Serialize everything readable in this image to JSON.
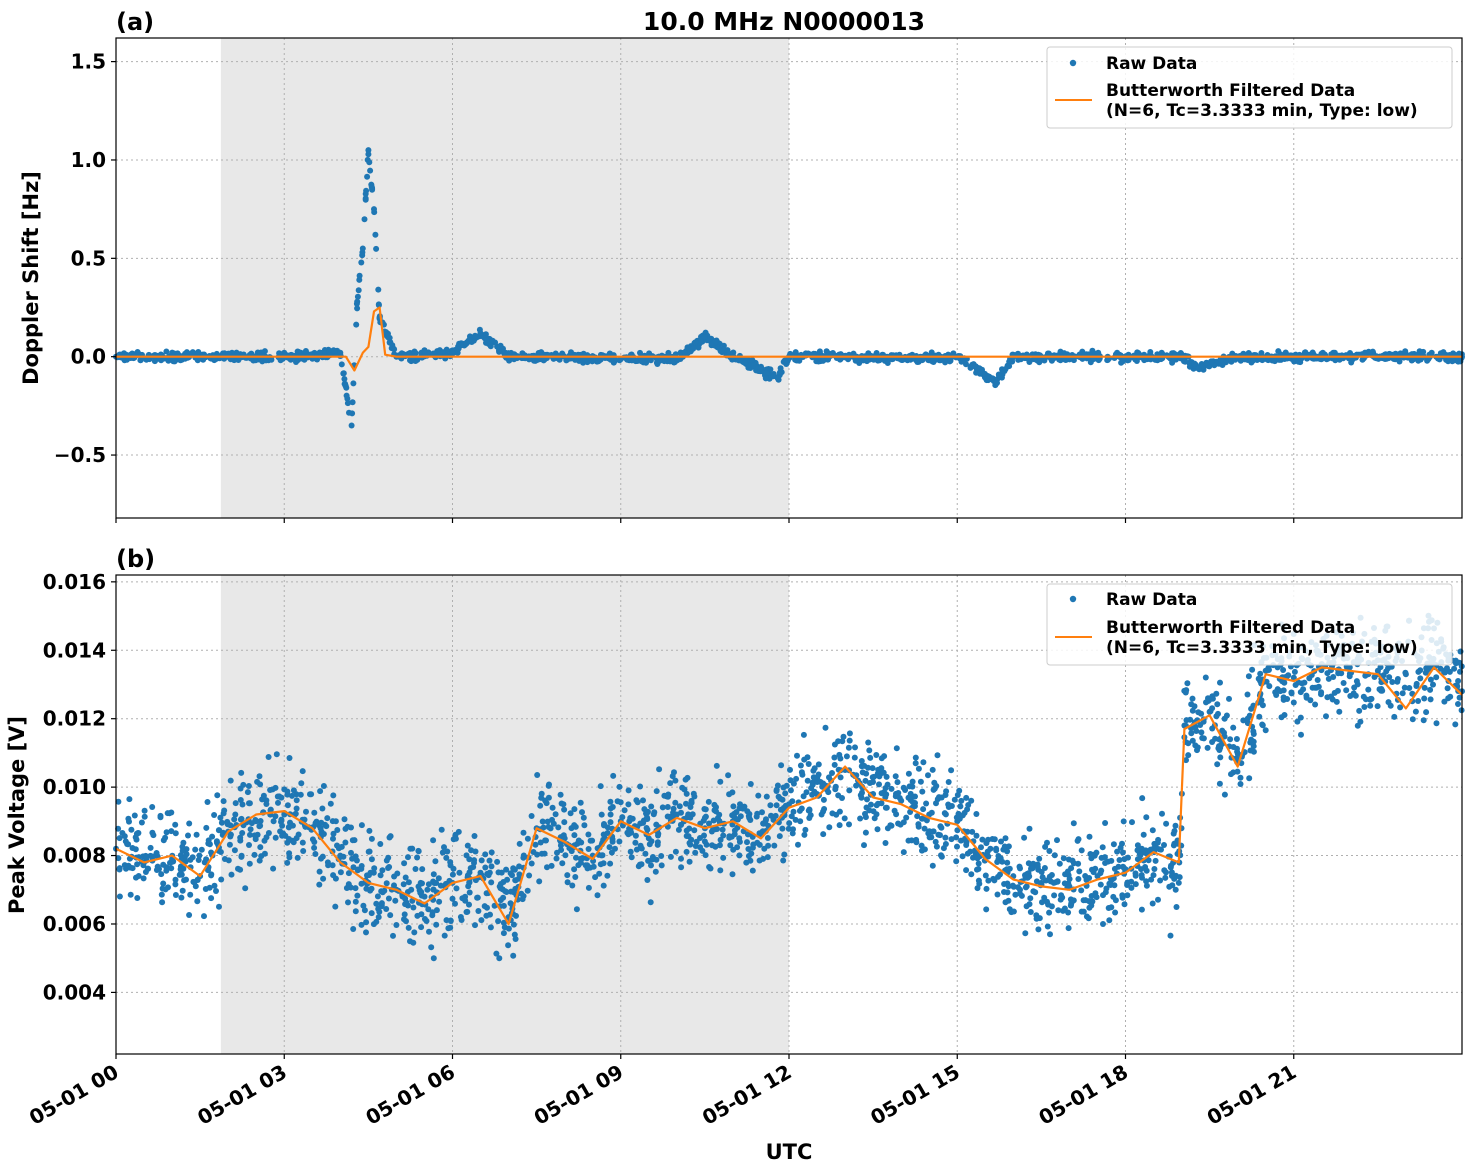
{
  "chart_data": [
    {
      "type": "scatter",
      "panel_label": "(a)",
      "title": "10.0 MHz N0000013",
      "xlabel": "",
      "ylabel": "Doppler Shift [Hz]",
      "xlim_hours": [
        0,
        24
      ],
      "ylim": [
        -0.82,
        1.62
      ],
      "yticks": [
        -0.5,
        0.0,
        0.5,
        1.0,
        1.5
      ],
      "ytick_labels": [
        "−0.5",
        "0.0",
        "0.5",
        "1.0",
        "1.5"
      ],
      "grid": true,
      "shaded_interval_hours": [
        1.87,
        12.0
      ],
      "legend_position": "top-right",
      "series": [
        {
          "name": "Raw Data",
          "style": "points",
          "color": "#1f77b4",
          "x": [
            0,
            1,
            2,
            3,
            4,
            4.2,
            4.3,
            4.4,
            4.5,
            4.6,
            4.7,
            5,
            6,
            6.5,
            7,
            8,
            9,
            10,
            10.5,
            11,
            11.8,
            12,
            13,
            14,
            15,
            15.7,
            16,
            17,
            18,
            19,
            19.3,
            20,
            21,
            22,
            23,
            24
          ],
          "y": [
            0.0,
            0.0,
            0.0,
            0.0,
            0.02,
            -0.35,
            0.28,
            0.55,
            1.05,
            0.75,
            0.2,
            0.0,
            0.02,
            0.12,
            0.0,
            0.0,
            -0.01,
            -0.01,
            0.1,
            0.0,
            -0.11,
            0.0,
            0.0,
            -0.01,
            0.0,
            -0.13,
            0.0,
            0.0,
            0.0,
            0.0,
            -0.06,
            0.0,
            0.0,
            0.0,
            0.0,
            0.0
          ]
        },
        {
          "name": "Butterworth Filtered Data\n(N=6, Tc=3.3333 min, Type: low)",
          "style": "line",
          "color": "#ff7f0e",
          "x": [
            0,
            4.1,
            4.25,
            4.4,
            4.5,
            4.6,
            4.7,
            4.8,
            5,
            12,
            24
          ],
          "y": [
            0.0,
            0.0,
            -0.07,
            0.02,
            0.05,
            0.23,
            0.25,
            0.01,
            0.0,
            0.0,
            0.0
          ]
        }
      ]
    },
    {
      "type": "scatter",
      "panel_label": "(b)",
      "xlabel": "UTC",
      "ylabel": "Peak Voltage [V]",
      "xlim_hours": [
        0,
        24
      ],
      "ylim": [
        0.0022,
        0.0162
      ],
      "yticks": [
        0.004,
        0.006,
        0.008,
        0.01,
        0.012,
        0.014,
        0.016
      ],
      "ytick_labels": [
        "0.004",
        "0.006",
        "0.008",
        "0.010",
        "0.012",
        "0.014",
        "0.016"
      ],
      "xtick_hours": [
        0,
        3,
        6,
        9,
        12,
        15,
        18,
        21
      ],
      "xtick_labels": [
        "05-01 00",
        "05-01 03",
        "05-01 06",
        "05-01 09",
        "05-01 12",
        "05-01 15",
        "05-01 18",
        "05-01 21"
      ],
      "grid": true,
      "shaded_interval_hours": [
        1.87,
        12.0
      ],
      "legend_position": "top-right",
      "series": [
        {
          "name": "Raw Data",
          "style": "points",
          "color": "#1f77b4",
          "x": [
            0,
            0.5,
            1,
            1.5,
            2,
            2.5,
            3,
            3.5,
            4,
            4.5,
            5,
            5.5,
            6,
            6.5,
            7,
            7.5,
            8,
            8.5,
            9,
            9.5,
            10,
            10.5,
            11,
            11.5,
            12,
            12.5,
            13,
            13.5,
            14,
            14.5,
            15,
            15.5,
            16,
            16.5,
            17,
            17.5,
            18,
            18.5,
            18.95,
            19.05,
            19.5,
            20,
            20.5,
            21,
            21.5,
            22,
            22.5,
            23,
            23.5,
            24
          ],
          "y": [
            0.0082,
            0.0078,
            0.0079,
            0.0074,
            0.0087,
            0.009,
            0.0092,
            0.0088,
            0.008,
            0.0072,
            0.007,
            0.0068,
            0.0072,
            0.0075,
            0.0062,
            0.0088,
            0.0085,
            0.008,
            0.009,
            0.0085,
            0.0092,
            0.0088,
            0.009,
            0.0086,
            0.0095,
            0.0098,
            0.0105,
            0.0098,
            0.0096,
            0.0092,
            0.009,
            0.008,
            0.0074,
            0.0072,
            0.0071,
            0.0074,
            0.0076,
            0.0082,
            0.0072,
            0.0118,
            0.0122,
            0.0108,
            0.0134,
            0.0132,
            0.0136,
            0.0135,
            0.0134,
            0.0133,
            0.0136,
            0.0128
          ]
        },
        {
          "name": "Butterworth Filtered Data\n(N=6, Tc=3.3333 min, Type: low)",
          "style": "line",
          "color": "#ff7f0e",
          "x": [
            0,
            0.5,
            1,
            1.5,
            2,
            2.5,
            3,
            3.5,
            4,
            4.5,
            5,
            5.5,
            6,
            6.5,
            7,
            7.5,
            8,
            8.5,
            9,
            9.5,
            10,
            10.5,
            11,
            11.5,
            12,
            12.5,
            13,
            13.5,
            14,
            14.5,
            15,
            15.5,
            16,
            16.5,
            17,
            17.5,
            18,
            18.5,
            18.95,
            19.05,
            19.5,
            20,
            20.5,
            21,
            21.5,
            22,
            22.5,
            23,
            23.5,
            24
          ],
          "y": [
            0.0082,
            0.0078,
            0.008,
            0.0074,
            0.0087,
            0.0092,
            0.0093,
            0.0088,
            0.0078,
            0.0072,
            0.007,
            0.0066,
            0.0072,
            0.0074,
            0.006,
            0.0088,
            0.0084,
            0.0079,
            0.009,
            0.0086,
            0.0091,
            0.0088,
            0.009,
            0.0085,
            0.0094,
            0.0097,
            0.0106,
            0.0097,
            0.0095,
            0.0091,
            0.0089,
            0.0079,
            0.0073,
            0.0071,
            0.007,
            0.0073,
            0.0075,
            0.0081,
            0.0078,
            0.0117,
            0.0121,
            0.0106,
            0.0133,
            0.0131,
            0.0135,
            0.0134,
            0.0133,
            0.0123,
            0.0135,
            0.0127
          ]
        }
      ]
    }
  ]
}
